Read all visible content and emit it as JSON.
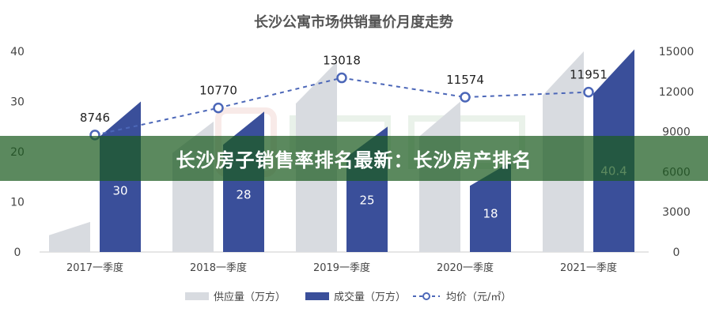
{
  "chart_data": {
    "type": "bar",
    "title": "长沙公寓市场供销量价月度走势",
    "categories": [
      "2017一季度",
      "2018一季度",
      "2019一季度",
      "2020一季度",
      "2021一季度"
    ],
    "series": [
      {
        "name": "供应量（万方）",
        "type": "bar",
        "axis": "left",
        "color": "#d8dbe0",
        "values": [
          6,
          26,
          38,
          30,
          40
        ]
      },
      {
        "name": "成交量（万方）",
        "type": "bar",
        "axis": "left",
        "color": "#3a4f9a",
        "values": [
          30,
          28,
          25,
          18,
          40.4
        ]
      },
      {
        "name": "均价（元/㎡）",
        "type": "line",
        "axis": "right",
        "color": "#4c67b8",
        "values": [
          8746,
          10770,
          13018,
          11574,
          11951
        ]
      }
    ],
    "left_axis": {
      "ylim": [
        0,
        40
      ],
      "ticks": [
        "0",
        "10",
        "20",
        "30",
        "40"
      ]
    },
    "right_axis": {
      "ylim": [
        0,
        15000
      ],
      "ticks": [
        "0",
        "3000",
        "6000",
        "9000",
        "12000",
        "15000"
      ]
    },
    "legend_position": "bottom-center"
  },
  "banner": {
    "text": "长沙房子销售率排名最新：长沙房产排名"
  }
}
